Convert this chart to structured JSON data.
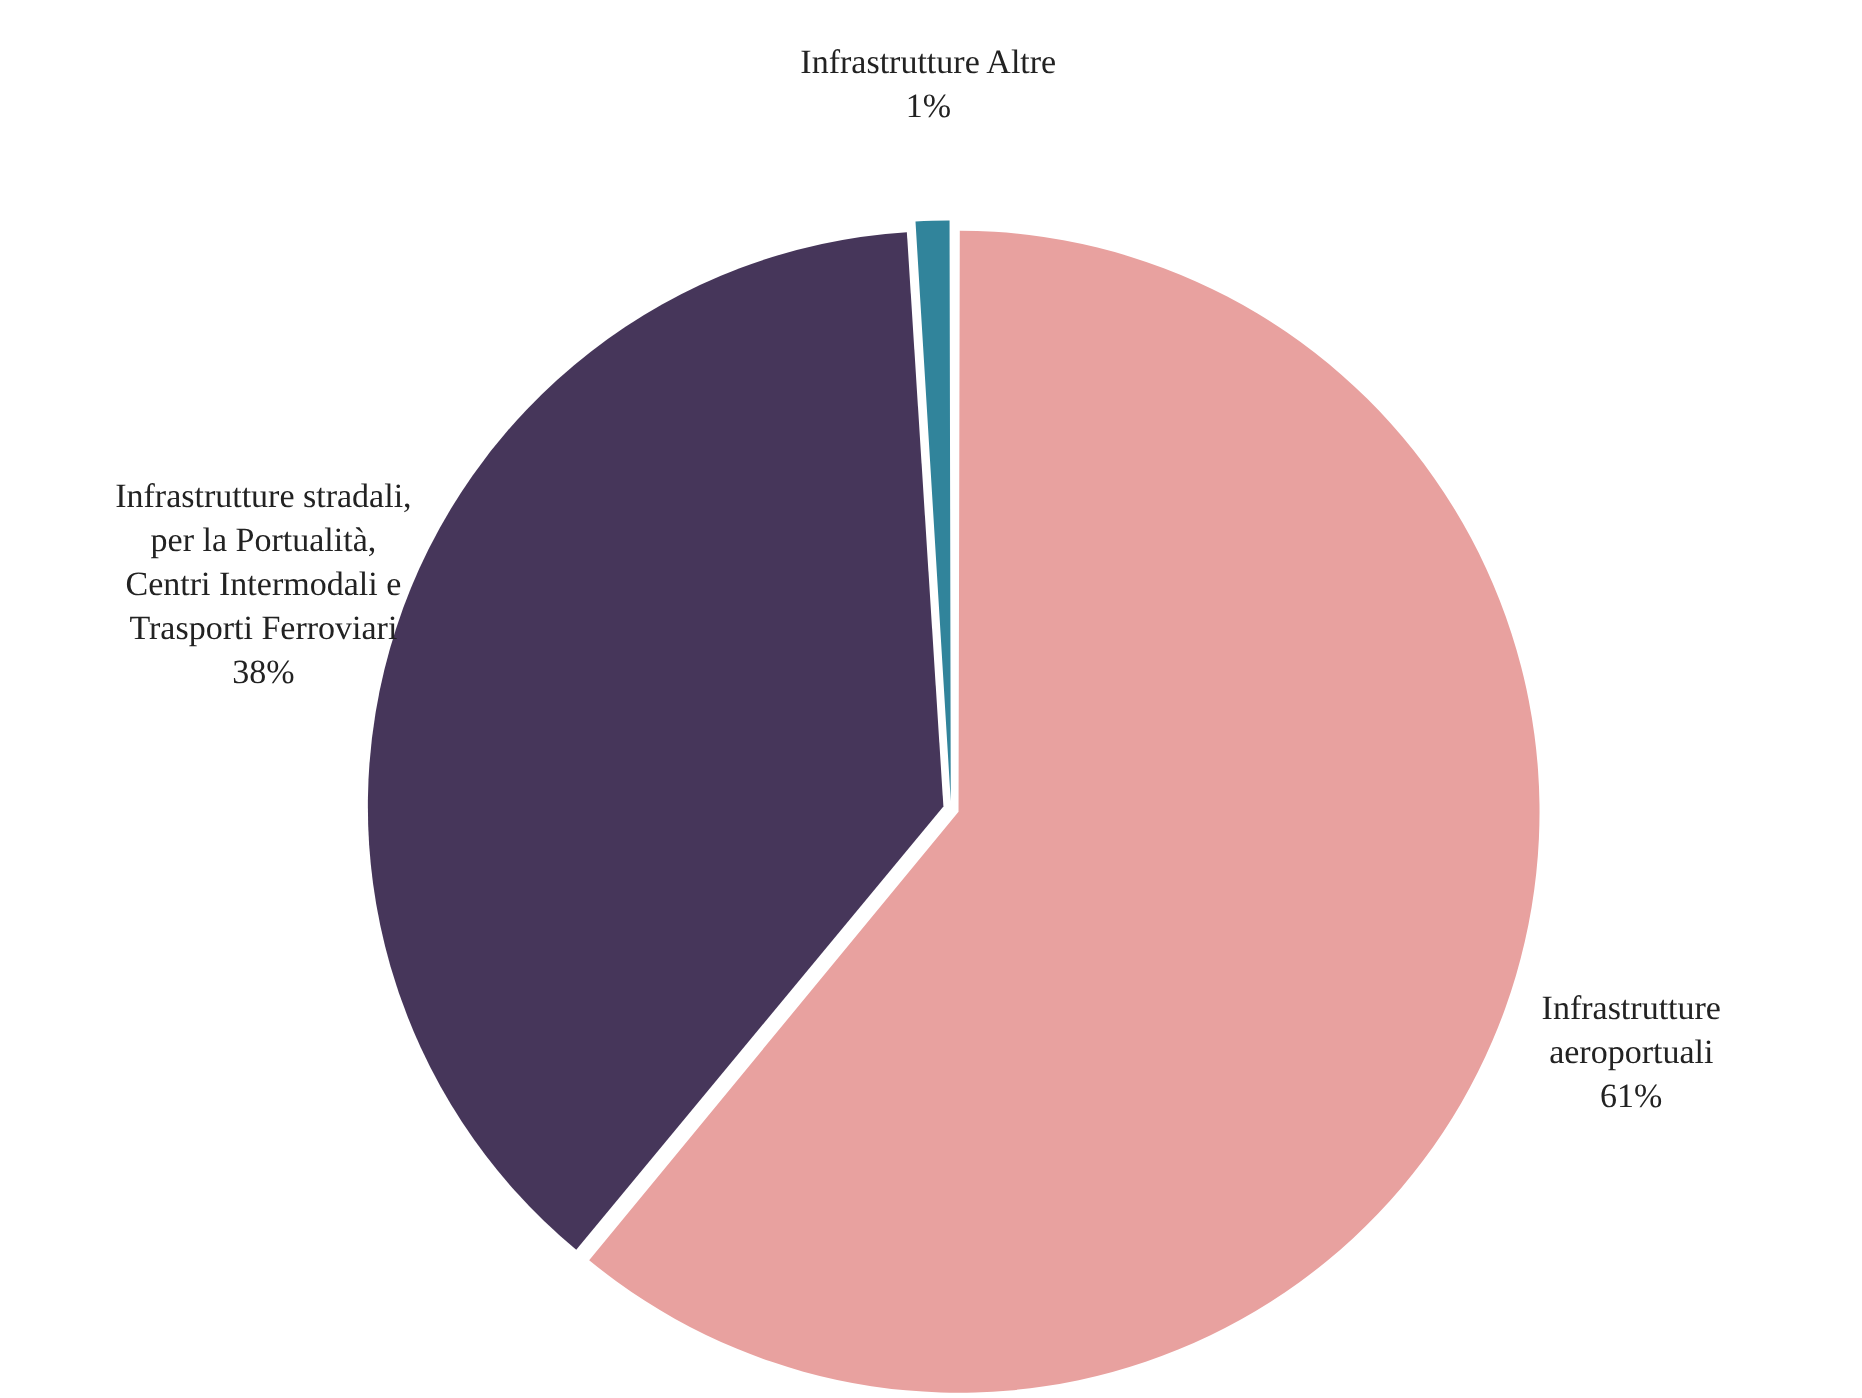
{
  "chart_data": {
    "type": "pie",
    "categories": [
      "Infrastrutture aeroportuali",
      "Infrastrutture stradali, per la Portualità, Centri Intermodali e Trasporti Ferroviari",
      "Infrastrutture Altre"
    ],
    "values": [
      61,
      38,
      1
    ],
    "value_labels": [
      "61%",
      "38%",
      "1%"
    ],
    "colors": [
      "#e8a19f",
      "#46365a",
      "#31849b"
    ],
    "legend": false
  }
}
